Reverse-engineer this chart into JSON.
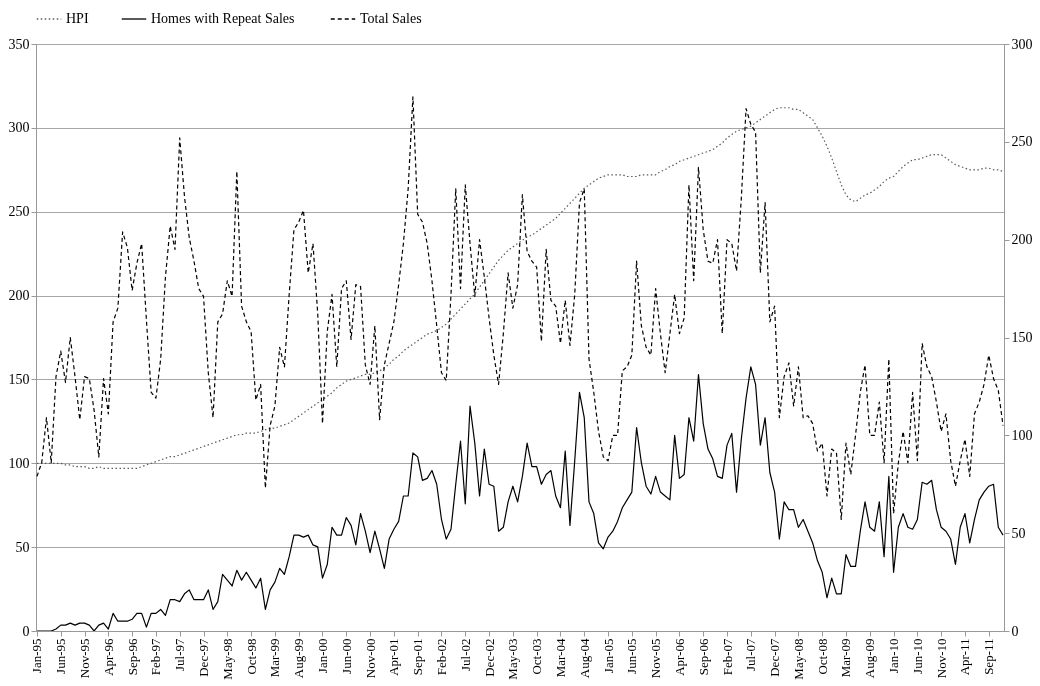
{
  "chart_data": {
    "type": "line",
    "categories": [
      "Jan-95",
      null,
      null,
      null,
      null,
      "Jun-95",
      null,
      null,
      null,
      null,
      "Nov-95",
      null,
      null,
      null,
      null,
      "Apr-96",
      null,
      null,
      null,
      null,
      "Sep-96",
      null,
      null,
      null,
      null,
      "Feb-97",
      null,
      null,
      null,
      null,
      "Jul-97",
      null,
      null,
      null,
      null,
      "Dec-97",
      null,
      null,
      null,
      null,
      "May-98",
      null,
      null,
      null,
      null,
      "Oct-98",
      null,
      null,
      null,
      null,
      "Mar-99",
      null,
      null,
      null,
      null,
      "Aug-99",
      null,
      null,
      null,
      null,
      "Jan-00",
      null,
      null,
      null,
      null,
      "Jun-00",
      null,
      null,
      null,
      null,
      "Nov-00",
      null,
      null,
      null,
      null,
      "Apr-01",
      null,
      null,
      null,
      null,
      "Sep-01",
      null,
      null,
      null,
      null,
      "Feb-02",
      null,
      null,
      null,
      null,
      "Jul-02",
      null,
      null,
      null,
      null,
      "Dec-02",
      null,
      null,
      null,
      null,
      "May-03",
      null,
      null,
      null,
      null,
      "Oct-03",
      null,
      null,
      null,
      null,
      "Mar-04",
      null,
      null,
      null,
      null,
      "Aug-04",
      null,
      null,
      null,
      null,
      "Jan-05",
      null,
      null,
      null,
      null,
      "Jun-05",
      null,
      null,
      null,
      null,
      "Nov-05",
      null,
      null,
      null,
      null,
      "Apr-06",
      null,
      null,
      null,
      null,
      "Sep-06",
      null,
      null,
      null,
      null,
      "Feb-07",
      null,
      null,
      null,
      null,
      "Jul-07",
      null,
      null,
      null,
      null,
      "Dec-07",
      null,
      null,
      null,
      null,
      "May-08",
      null,
      null,
      null,
      null,
      "Oct-08",
      null,
      null,
      null,
      null,
      "Mar-09",
      null,
      null,
      null,
      null,
      "Aug-09",
      null,
      null,
      null,
      null,
      "Jan-10",
      null,
      null,
      null,
      null,
      "Jun-10",
      null,
      null,
      null,
      null,
      "Nov-10",
      null,
      null,
      null,
      null,
      "Apr-11",
      null,
      null,
      null,
      null,
      "Sep-11",
      null,
      null,
      null
    ],
    "series": [
      {
        "name": "HPI",
        "color": "#595959",
        "line_style": "dotted",
        "values": [
          100,
          100,
          100,
          100,
          100,
          100,
          99,
          99,
          98,
          98,
          98,
          97,
          97,
          98,
          97,
          97,
          97,
          97,
          97,
          97,
          97,
          97,
          98,
          99,
          100,
          101,
          102,
          103,
          104,
          104,
          105,
          106,
          107,
          108,
          109,
          110,
          111,
          112,
          113,
          114,
          115,
          116,
          117,
          117,
          118,
          118,
          118,
          119,
          120,
          121,
          121,
          122,
          123,
          124,
          126,
          128,
          130,
          132,
          134,
          136,
          138,
          140,
          142,
          145,
          147,
          149,
          150,
          151,
          152,
          153,
          153,
          154,
          155,
          157,
          159,
          162,
          164,
          167,
          169,
          171,
          173,
          175,
          177,
          178,
          179,
          181,
          183,
          186,
          189,
          192,
          195,
          198,
          201,
          205,
          209,
          213,
          217,
          221,
          224,
          227,
          229,
          231,
          233,
          235,
          236,
          238,
          240,
          242,
          244,
          246,
          249,
          252,
          255,
          258,
          261,
          264,
          266,
          268,
          270,
          271,
          272,
          272,
          272,
          272,
          271,
          271,
          271,
          272,
          272,
          272,
          272,
          274,
          275,
          277,
          278,
          280,
          281,
          282,
          283,
          284,
          285,
          286,
          287,
          289,
          291,
          294,
          296,
          298,
          299,
          300,
          301,
          303,
          305,
          307,
          309,
          311,
          312,
          312,
          312,
          311,
          311,
          309,
          307,
          305,
          300,
          295,
          289,
          282,
          274,
          266,
          260,
          257,
          256,
          258,
          260,
          261,
          263,
          265,
          268,
          270,
          271,
          274,
          277,
          279,
          281,
          281,
          282,
          283,
          284,
          284,
          284,
          282,
          280,
          278,
          277,
          276,
          275,
          275,
          275,
          276,
          276,
          275,
          275,
          274
        ]
      },
      {
        "name": "Homes with  Repeat Sales",
        "color": "#000000",
        "line_style": "solid",
        "axis": "y2",
        "values": [
          0,
          0,
          0,
          0,
          1,
          3,
          3,
          4,
          3,
          4,
          4,
          3,
          0,
          3,
          4,
          1,
          9,
          5,
          5,
          5,
          6,
          9,
          9,
          2,
          9,
          9,
          11,
          8,
          16,
          16,
          15,
          19,
          21,
          16,
          16,
          16,
          21,
          11,
          15,
          29,
          26,
          23,
          31,
          26,
          30,
          26,
          22,
          27,
          11,
          21,
          25,
          32,
          29,
          38,
          49,
          49,
          48,
          49,
          44,
          43,
          27,
          34,
          53,
          49,
          49,
          58,
          54,
          44,
          60,
          51,
          40,
          51,
          42,
          32,
          47,
          52,
          56,
          69,
          69,
          91,
          89,
          77,
          78,
          82,
          75,
          57,
          47,
          52,
          75,
          97,
          65,
          115,
          96,
          69,
          93,
          75,
          74,
          51,
          53,
          66,
          74,
          66,
          79,
          96,
          84,
          84,
          75,
          80,
          82,
          69,
          63,
          92,
          54,
          87,
          122,
          109,
          66,
          60,
          45,
          42,
          48,
          51,
          56,
          63,
          67,
          71,
          104,
          86,
          74,
          70,
          79,
          71,
          69,
          67,
          100,
          78,
          80,
          109,
          97,
          131,
          106,
          93,
          88,
          79,
          78,
          95,
          101,
          71,
          98,
          119,
          135,
          126,
          95,
          109,
          81,
          71,
          47,
          66,
          62,
          62,
          53,
          57,
          51,
          45,
          36,
          30,
          17,
          27,
          19,
          19,
          39,
          33,
          33,
          51,
          66,
          53,
          51,
          66,
          38,
          79,
          30,
          53,
          60,
          53,
          52,
          57,
          76,
          75,
          77,
          62,
          53,
          51,
          47,
          34,
          53,
          60,
          45,
          57,
          67,
          71,
          74,
          75,
          53,
          49
        ]
      },
      {
        "name": "Total Sales",
        "color": "#000000",
        "line_style": "dashed",
        "axis": "y2",
        "values": [
          79,
          86,
          109,
          86,
          130,
          143,
          127,
          150,
          130,
          108,
          130,
          129,
          113,
          89,
          129,
          111,
          158,
          165,
          204,
          196,
          174,
          188,
          198,
          159,
          122,
          119,
          139,
          181,
          207,
          195,
          252,
          222,
          201,
          189,
          175,
          171,
          132,
          109,
          158,
          162,
          179,
          171,
          235,
          166,
          158,
          153,
          118,
          126,
          73,
          105,
          115,
          145,
          135,
          172,
          205,
          209,
          215,
          183,
          198,
          162,
          106,
          153,
          172,
          135,
          175,
          179,
          149,
          177,
          176,
          136,
          126,
          156,
          108,
          136,
          147,
          158,
          177,
          198,
          226,
          273,
          213,
          209,
          198,
          179,
          156,
          132,
          128,
          172,
          226,
          175,
          228,
          198,
          171,
          200,
          181,
          160,
          141,
          126,
          152,
          183,
          165,
          177,
          223,
          194,
          189,
          186,
          148,
          195,
          169,
          166,
          147,
          169,
          146,
          172,
          219,
          226,
          139,
          122,
          102,
          89,
          87,
          100,
          100,
          133,
          135,
          141,
          189,
          156,
          145,
          141,
          175,
          152,
          132,
          152,
          172,
          152,
          160,
          228,
          179,
          237,
          205,
          189,
          188,
          200,
          152,
          200,
          198,
          184,
          221,
          267,
          259,
          255,
          183,
          219,
          158,
          166,
          109,
          130,
          137,
          115,
          135,
          109,
          110,
          106,
          92,
          96,
          69,
          93,
          91,
          57,
          96,
          80,
          100,
          122,
          136,
          100,
          100,
          117,
          86,
          139,
          60,
          86,
          102,
          86,
          122,
          87,
          147,
          135,
          130,
          117,
          102,
          111,
          87,
          74,
          87,
          98,
          79,
          111,
          117,
          126,
          141,
          129,
          123,
          105
        ]
      }
    ],
    "ylim": [
      0,
      350
    ],
    "yticks": [
      0,
      50,
      100,
      150,
      200,
      250,
      300,
      350
    ],
    "y2lim": [
      0,
      300
    ],
    "y2ticks": [
      0,
      50,
      100,
      150,
      200,
      250,
      300
    ],
    "grid": "y",
    "legend": "top"
  }
}
